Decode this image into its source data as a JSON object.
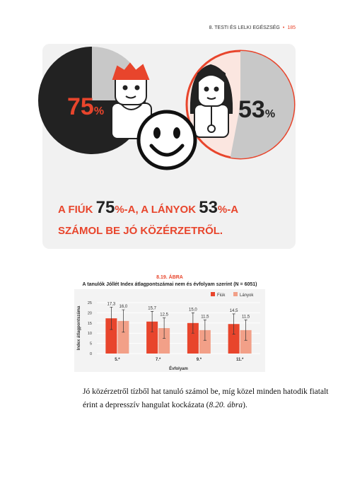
{
  "header": {
    "section": "8. TESTI ÉS LELKI EGÉSZSÉG",
    "page": "185"
  },
  "infographic": {
    "boys": {
      "value": 75
    },
    "girls": {
      "value": 53
    },
    "percent_sign": "%",
    "caption": {
      "part1": "A FIÚK ",
      "part2": "-A, A LÁNYOK ",
      "part3": "-A",
      "line2": "SZÁMOL BE JÓ KÖZÉRZETRŐL."
    }
  },
  "chart_data": {
    "type": "bar",
    "figure_label": "8.19. ábra",
    "title": "A tanulók Jóllét Index átlagpontszámai nem és évfolyam szerint (N = 6051)",
    "x_label": "Évfolyam",
    "y_label": "Index átlagpontszáma",
    "categories": [
      "5.*",
      "7.*",
      "9.*",
      "11.*"
    ],
    "series": [
      {
        "name": "Fiúk",
        "color": "#e8452c",
        "values": [
          17.3,
          15.7,
          15.0,
          14.5
        ],
        "value_labels": [
          "17,3",
          "15,7",
          "15,0",
          "14,5"
        ],
        "errors": [
          5.5,
          5,
          5,
          5
        ]
      },
      {
        "name": "Lányok",
        "color": "#f2a088",
        "values": [
          16.0,
          12.5,
          11.5,
          11.5
        ],
        "value_labels": [
          "16,0",
          "12,5",
          "11,5",
          "11,5"
        ],
        "errors": [
          5.5,
          5,
          5,
          5
        ]
      }
    ],
    "ylim": [
      0,
      25
    ],
    "yticks": [
      0,
      5,
      10,
      15,
      20,
      25
    ],
    "grid": true,
    "legend": "top-right"
  },
  "paragraph": {
    "text": "Jó közérzetről tízből hat tanuló számol be, míg közel minden hatodik fiatalt érint a depresszív hangulat kockázata (",
    "ref": "8.20. ábra",
    "end": ")."
  }
}
